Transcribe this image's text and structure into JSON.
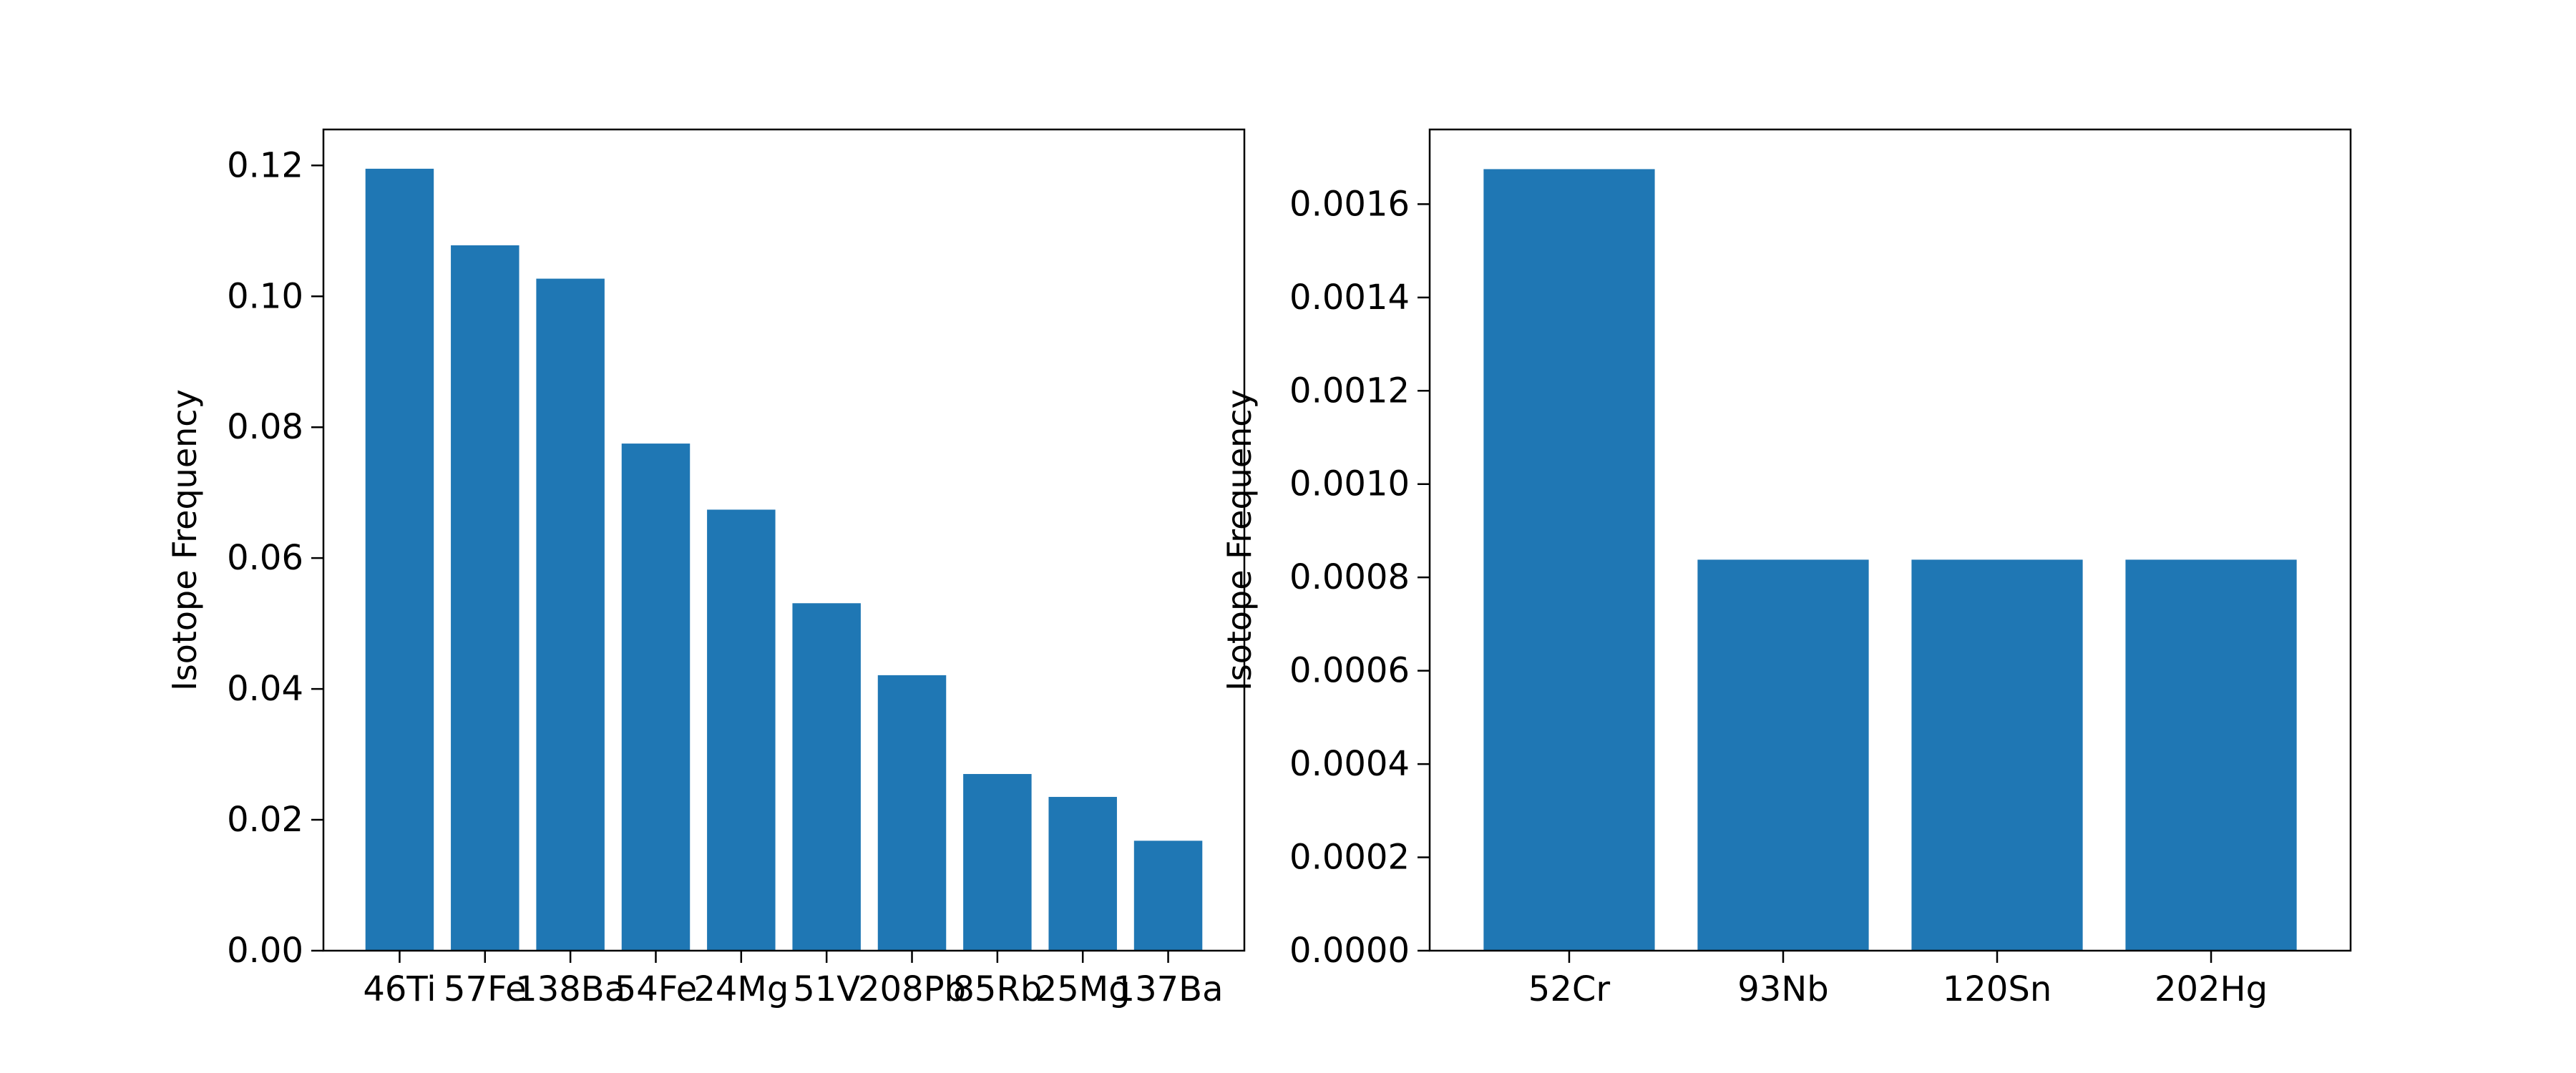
{
  "chart_data": [
    {
      "type": "bar",
      "categories": [
        "46Ti",
        "57Fe",
        "138Ba",
        "54Fe",
        "24Mg",
        "51V",
        "208Pb",
        "85Rb",
        "25Mg",
        "137Ba"
      ],
      "values": [
        0.1195,
        0.1078,
        0.1027,
        0.0775,
        0.0674,
        0.0531,
        0.0421,
        0.027,
        0.0235,
        0.0168
      ],
      "ylabel": "Isotope Frequency",
      "xlabel": "",
      "title": "",
      "ylim": [
        0,
        0.1255
      ],
      "yticks": [
        "0.00",
        "0.02",
        "0.04",
        "0.06",
        "0.08",
        "0.10",
        "0.12"
      ],
      "bar_color": "#1f77b4",
      "grid": false
    },
    {
      "type": "bar",
      "categories": [
        "52Cr",
        "93Nb",
        "120Sn",
        "202Hg"
      ],
      "values": [
        0.001675,
        0.000838,
        0.000838,
        0.000838
      ],
      "ylabel": "Isotope Frequency",
      "xlabel": "",
      "title": "",
      "ylim": [
        0,
        0.00176
      ],
      "yticks": [
        "0.0000",
        "0.0002",
        "0.0004",
        "0.0006",
        "0.0008",
        "0.0010",
        "0.0012",
        "0.0014",
        "0.0016"
      ],
      "bar_color": "#1f77b4",
      "grid": false
    }
  ]
}
